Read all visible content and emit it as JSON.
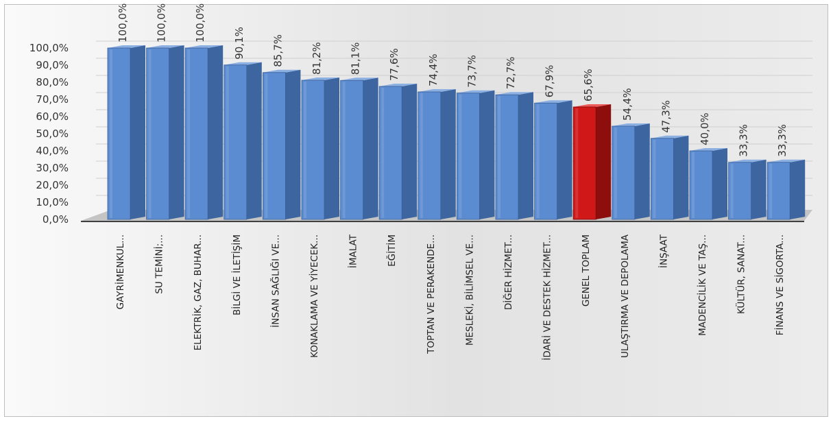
{
  "chart_data": {
    "type": "bar",
    "title": "",
    "xlabel": "",
    "ylabel": "",
    "ylim": [
      0,
      100
    ],
    "y_ticks": [
      "0,0%",
      "10,0%",
      "20,0%",
      "30,0%",
      "40,0%",
      "50,0%",
      "60,0%",
      "70,0%",
      "80,0%",
      "90,0%",
      "100,0%"
    ],
    "categories": [
      "GAYRİMENKUL...",
      "SU TEMİNİ;...",
      "ELEKTRİK, GAZ, BUHAR...",
      "BİLGİ VE İLETİŞİM",
      "İNSAN SAĞLIĞI VE...",
      "KONAKLAMA VE YİYECEK...",
      "İMALAT",
      "EĞİTİM",
      "TOPTAN VE PERAKENDE...",
      "MESLEKİ, BİLİMSEL VE...",
      "DİĞER HİZMET...",
      "İDARİ VE DESTEK HİZMET...",
      "GENEL TOPLAM",
      "ULAŞTIRMA VE DEPOLAMA",
      "İNŞAAT",
      "MADENCİLİK VE TAŞ...",
      "KÜLTÜR, SANAT...",
      "FİNANS VE SİGORTA..."
    ],
    "values": [
      100.0,
      100.0,
      100.0,
      90.1,
      85.7,
      81.2,
      81.1,
      77.6,
      74.4,
      73.7,
      72.7,
      67.9,
      65.6,
      54.4,
      47.3,
      40.0,
      33.3,
      33.3
    ],
    "value_labels": [
      "100,0%",
      "100,0%",
      "100,0%",
      "90,1%",
      "85,7%",
      "81,2%",
      "81,1%",
      "77,6%",
      "74,4%",
      "73,7%",
      "72,7%",
      "67,9%",
      "65,6%",
      "54,4%",
      "47,3%",
      "40,0%",
      "33,3%",
      "33,3%"
    ],
    "highlight_index": 12,
    "colors": {
      "bar_front": "#5b8bd1",
      "bar_side": "#3d659f",
      "bar_top": "#8db0e3",
      "highlight_front": "#d01818",
      "highlight_side": "#8e0e0e",
      "highlight_top": "#ec5a5a",
      "floor": "#c4c4c4",
      "axis": "#404040"
    },
    "grid": true,
    "legend": "none",
    "style": "3d-column"
  }
}
